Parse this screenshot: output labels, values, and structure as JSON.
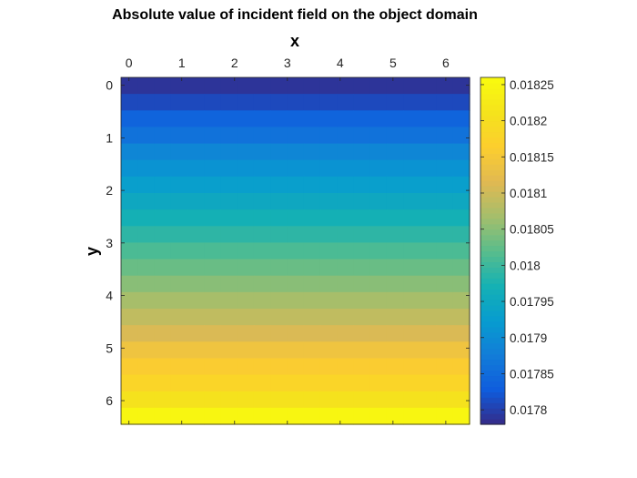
{
  "chart_data": {
    "type": "heatmap",
    "title": "Absolute value of incident field on the object domain",
    "xlabel": "x",
    "ylabel": "y",
    "x_axis_position": "top",
    "y_axis_direction": "reversed",
    "xlim": [
      -0.15,
      6.45
    ],
    "ylim": [
      -0.15,
      6.45
    ],
    "x_ticks": [
      0,
      1,
      2,
      3,
      4,
      5,
      6
    ],
    "y_ticks": [
      0,
      1,
      2,
      3,
      4,
      5,
      6
    ],
    "grid_rows": 21,
    "grid_cols": 21,
    "row_values": [
      0.01779,
      0.01781,
      0.01784,
      0.01786,
      0.01789,
      0.01791,
      0.01793,
      0.01795,
      0.01797,
      0.01799,
      0.01801,
      0.01803,
      0.01805,
      0.01807,
      0.01809,
      0.01811,
      0.01814,
      0.01816,
      0.01818,
      0.01821,
      0.01825
    ],
    "colorbar": {
      "location": "right",
      "clim": [
        0.01778,
        0.01826
      ],
      "ticks": [
        0.0178,
        0.01785,
        0.0179,
        0.01795,
        0.018,
        0.01805,
        0.0181,
        0.01815,
        0.0182,
        0.01825
      ],
      "tick_labels": [
        "0.0178",
        "0.01785",
        "0.0179",
        "0.01795",
        "0.018",
        "0.01805",
        "0.0181",
        "0.01815",
        "0.0182",
        "0.01825"
      ]
    },
    "colormap": "parula",
    "grid": false
  }
}
